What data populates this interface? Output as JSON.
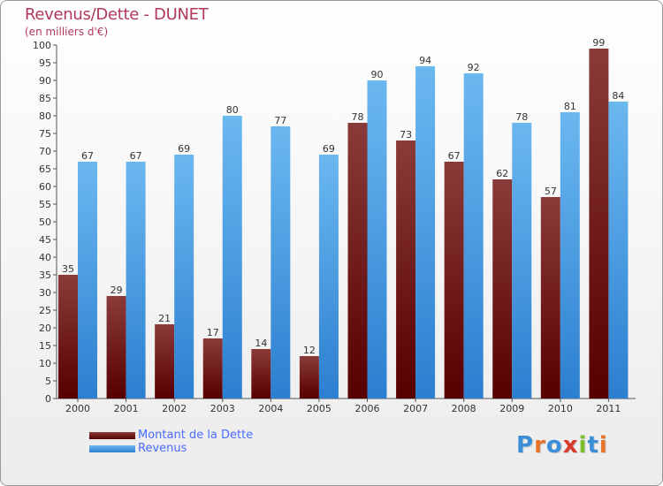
{
  "title": "Revenus/Dette - DUNET",
  "subtitle": "(en milliers d'€)",
  "legend": {
    "debt_label": "Montant de la Dette",
    "revenue_label": "Revenus"
  },
  "logo": {
    "text": "Proxiti"
  },
  "colors": {
    "debt_top": "#8b3a3a",
    "debt_bottom": "#560000",
    "revenue_top": "#6bb8f0",
    "revenue_bottom": "#2c7fd0",
    "title": "#b0395a",
    "legend_text": "#4a6cff"
  },
  "chart_data": {
    "type": "bar",
    "title": "Revenus/Dette - DUNET",
    "ylabel": "(en milliers d'€)",
    "xlabel": "",
    "categories": [
      "2000",
      "2001",
      "2002",
      "2003",
      "2004",
      "2005",
      "2006",
      "2007",
      "2008",
      "2009",
      "2010",
      "2011"
    ],
    "series": [
      {
        "name": "Montant de la Dette",
        "values": [
          35,
          29,
          21,
          17,
          14,
          12,
          78,
          73,
          67,
          62,
          57,
          99
        ]
      },
      {
        "name": "Revenus",
        "values": [
          67,
          67,
          69,
          80,
          77,
          69,
          90,
          94,
          92,
          78,
          81,
          84
        ]
      }
    ],
    "ylim": [
      0,
      100
    ],
    "ytick_step": 5,
    "grid": false,
    "legend_position": "bottom-left"
  }
}
